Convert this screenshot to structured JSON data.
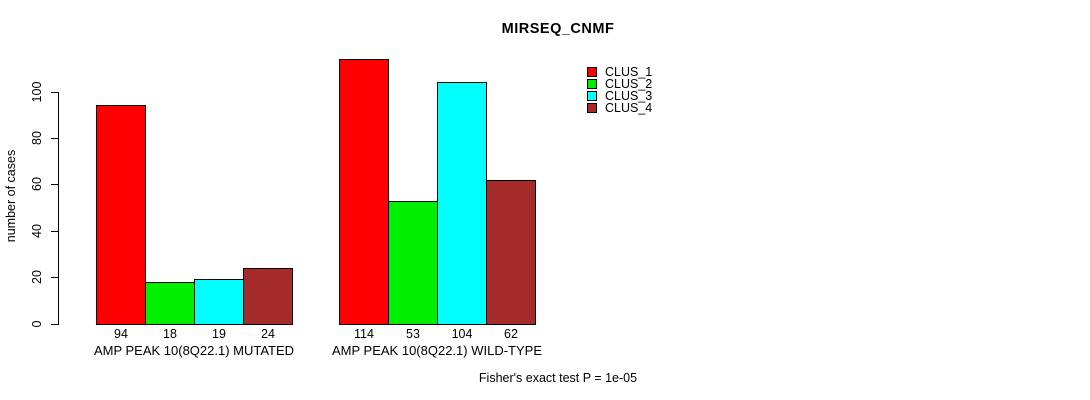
{
  "chart": {
    "title": "MIRSEQ_CNMF",
    "ylabel": "number of cases",
    "footer": "Fisher's exact test P = 1e-05"
  },
  "chart_data": {
    "type": "bar",
    "title": "MIRSEQ_CNMF",
    "xlabel": "",
    "ylabel": "number of cases",
    "ylim": [
      0,
      120
    ],
    "yticks": [
      0,
      20,
      40,
      60,
      80,
      100
    ],
    "grid": false,
    "legend_position": "top-right",
    "bar_value_labels": true,
    "categories": [
      "AMP PEAK 10(8Q22.1) MUTATED",
      "AMP PEAK 10(8Q22.1) WILD-TYPE"
    ],
    "series": [
      {
        "name": "CLUS_1",
        "color": "#FF0000",
        "values": [
          94,
          114
        ]
      },
      {
        "name": "CLUS_2",
        "color": "#00EE00",
        "values": [
          18,
          53
        ]
      },
      {
        "name": "CLUS_3",
        "color": "#00FFFF",
        "values": [
          19,
          104
        ]
      },
      {
        "name": "CLUS_4",
        "color": "#A52A2A",
        "values": [
          24,
          62
        ]
      }
    ],
    "annotation": "Fisher's exact test P = 1e-05"
  }
}
